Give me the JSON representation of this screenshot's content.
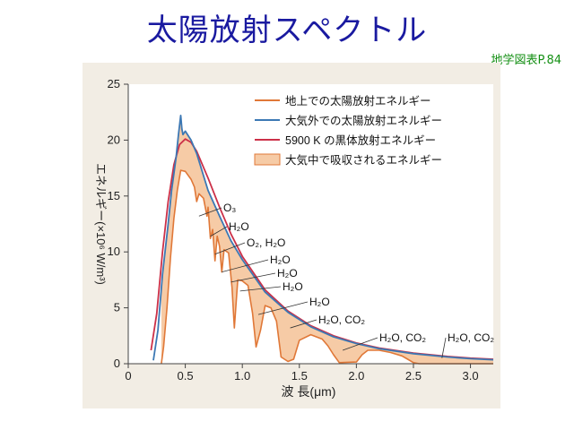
{
  "slide": {
    "title": "太陽放射スペクトル",
    "source_ref": "地学図表P.84"
  },
  "colors": {
    "ground": "#e07838",
    "outer": "#3c78b4",
    "blackbody": "#cc3048",
    "absorbed_fill": "#f6cba6",
    "panel": "#f2ede4",
    "plot_bg": "#ffffff"
  },
  "chart_data": {
    "type": "line",
    "xlabel": "波 長(μm)",
    "ylabel": "エネルギー(×10⁶ W/m³)",
    "xlim": [
      0,
      3.2
    ],
    "ylim": [
      0,
      25
    ],
    "x_ticks": [
      0,
      0.5,
      1.0,
      1.5,
      2.0,
      2.5,
      3.0
    ],
    "x_tick_labels": [
      "0",
      "0.5",
      "1.0",
      "1.5",
      "2.0",
      "2.5",
      "3.0"
    ],
    "y_ticks": [
      0,
      5,
      10,
      15,
      20,
      25
    ],
    "y_tick_labels": [
      "0",
      "5",
      "10",
      "15",
      "20",
      "25"
    ],
    "grid": false,
    "legend_position": "top-right",
    "legend": [
      {
        "key": "ground",
        "label": "地上での太陽放射エネルギー",
        "style": "line"
      },
      {
        "key": "outer",
        "label": "大気外での太陽放射エネルギー",
        "style": "line"
      },
      {
        "key": "blackbody",
        "label": "5900 K の黒体放射エネルギー",
        "style": "line"
      },
      {
        "key": "absorbed_fill",
        "label": "大気中で吸収されるエネルギー",
        "style": "fill"
      }
    ],
    "series": [
      {
        "key": "blackbody",
        "label": "5900 K の黒体放射エネルギー",
        "points": [
          [
            0.2,
            1.2
          ],
          [
            0.25,
            4.5
          ],
          [
            0.3,
            10
          ],
          [
            0.35,
            14.5
          ],
          [
            0.4,
            17.8
          ],
          [
            0.45,
            19.6
          ],
          [
            0.5,
            20.1
          ],
          [
            0.55,
            19.8
          ],
          [
            0.6,
            19
          ],
          [
            0.7,
            16.6
          ],
          [
            0.8,
            14
          ],
          [
            0.9,
            11.6
          ],
          [
            1.0,
            9.6
          ],
          [
            1.2,
            6.6
          ],
          [
            1.4,
            4.7
          ],
          [
            1.6,
            3.4
          ],
          [
            1.8,
            2.5
          ],
          [
            2.0,
            1.85
          ],
          [
            2.2,
            1.4
          ],
          [
            2.5,
            0.95
          ],
          [
            2.8,
            0.65
          ],
          [
            3.0,
            0.5
          ],
          [
            3.2,
            0.4
          ]
        ]
      },
      {
        "key": "outer",
        "label": "大気外での太陽放射エネルギー",
        "points": [
          [
            0.22,
            0.3
          ],
          [
            0.26,
            3
          ],
          [
            0.3,
            8
          ],
          [
            0.35,
            12.5
          ],
          [
            0.38,
            15.5
          ],
          [
            0.4,
            17
          ],
          [
            0.42,
            18.5
          ],
          [
            0.44,
            20.5
          ],
          [
            0.46,
            22.2
          ],
          [
            0.47,
            21
          ],
          [
            0.48,
            20.5
          ],
          [
            0.5,
            20.8
          ],
          [
            0.55,
            20
          ],
          [
            0.6,
            18.8
          ],
          [
            0.7,
            15.5
          ],
          [
            0.8,
            13.2
          ],
          [
            0.9,
            11
          ],
          [
            1.0,
            9.3
          ],
          [
            1.2,
            6.4
          ],
          [
            1.4,
            4.6
          ],
          [
            1.6,
            3.3
          ],
          [
            1.8,
            2.4
          ],
          [
            2.0,
            1.8
          ],
          [
            2.2,
            1.35
          ],
          [
            2.5,
            0.9
          ],
          [
            2.8,
            0.6
          ],
          [
            3.0,
            0.45
          ],
          [
            3.2,
            0.35
          ]
        ]
      },
      {
        "key": "ground",
        "label": "地上での太陽放射エネルギー",
        "points": [
          [
            0.29,
            0
          ],
          [
            0.31,
            1.5
          ],
          [
            0.34,
            5
          ],
          [
            0.37,
            9.5
          ],
          [
            0.4,
            13
          ],
          [
            0.43,
            15.5
          ],
          [
            0.46,
            17.3
          ],
          [
            0.5,
            17.2
          ],
          [
            0.55,
            16.5
          ],
          [
            0.58,
            15.8
          ],
          [
            0.6,
            14.5
          ],
          [
            0.62,
            15.2
          ],
          [
            0.66,
            14.8
          ],
          [
            0.69,
            13.2
          ],
          [
            0.7,
            14
          ],
          [
            0.72,
            11.2
          ],
          [
            0.74,
            12
          ],
          [
            0.76,
            9.2
          ],
          [
            0.78,
            11.4
          ],
          [
            0.8,
            10.5
          ],
          [
            0.82,
            8.2
          ],
          [
            0.84,
            10.2
          ],
          [
            0.88,
            9.9
          ],
          [
            0.91,
            6.8
          ],
          [
            0.93,
            3.2
          ],
          [
            0.96,
            7.5
          ],
          [
            1.0,
            7.4
          ],
          [
            1.05,
            7
          ],
          [
            1.09,
            4.5
          ],
          [
            1.12,
            1.5
          ],
          [
            1.16,
            3
          ],
          [
            1.2,
            5.2
          ],
          [
            1.25,
            5
          ],
          [
            1.3,
            3.8
          ],
          [
            1.34,
            0.6
          ],
          [
            1.4,
            0.2
          ],
          [
            1.45,
            0.4
          ],
          [
            1.5,
            2.1
          ],
          [
            1.6,
            2.6
          ],
          [
            1.7,
            2.2
          ],
          [
            1.75,
            1.6
          ],
          [
            1.8,
            0.8
          ],
          [
            1.85,
            0.1
          ],
          [
            2.0,
            0.15
          ],
          [
            2.05,
            0.8
          ],
          [
            2.1,
            1.2
          ],
          [
            2.2,
            1.2
          ],
          [
            2.3,
            1
          ],
          [
            2.4,
            0.7
          ],
          [
            2.45,
            0.4
          ],
          [
            2.5,
            0.1
          ],
          [
            2.55,
            0
          ],
          [
            3.2,
            0
          ]
        ]
      }
    ],
    "annotations": [
      {
        "label": "O₃",
        "x": 0.62,
        "y": 13.2
      },
      {
        "label": "H₂O",
        "x": 0.72,
        "y": 11.4
      },
      {
        "label": "O₂, H₂O",
        "x": 0.76,
        "y": 9.8
      },
      {
        "label": "H₂O",
        "x": 0.82,
        "y": 8.2
      },
      {
        "label": "H₂O",
        "x": 0.9,
        "y": 7.3
      },
      {
        "label": "H₂O",
        "x": 0.98,
        "y": 6.5
      },
      {
        "label": "H₂O",
        "x": 1.14,
        "y": 4.4
      },
      {
        "label": "H₂O, CO₂",
        "x": 1.42,
        "y": 3.2
      },
      {
        "label": "H₂O, CO₂",
        "x": 1.88,
        "y": 1.2
      },
      {
        "label": "H₂O, CO₂",
        "x": 2.75,
        "y": 0.5
      }
    ]
  }
}
